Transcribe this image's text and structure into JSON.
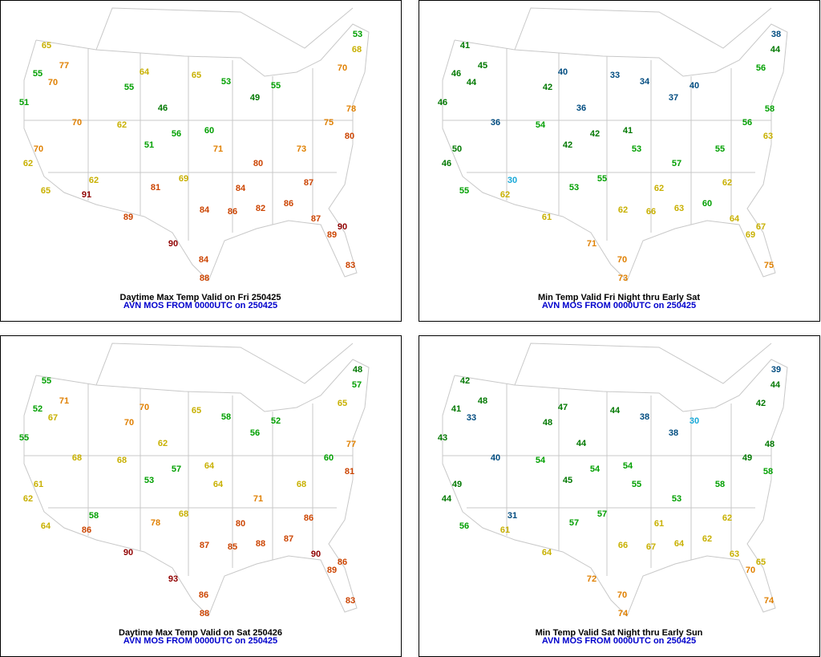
{
  "panels": [
    {
      "title": "Daytime Max Temp Valid on Fri 250425",
      "subtitle": "AVN MOS FROM 0000UTC on 250425",
      "values": [
        65,
        55,
        77,
        70,
        51,
        70,
        70,
        62,
        65,
        91,
        62,
        89,
        64,
        65,
        55,
        46,
        62,
        51,
        56,
        60,
        53,
        49,
        55,
        71,
        80,
        69,
        81,
        84,
        86,
        82,
        90,
        88,
        84,
        86,
        87,
        90,
        83,
        89,
        73,
        75,
        78,
        53,
        68,
        70,
        80,
        87,
        84
      ]
    },
    {
      "title": "Min Temp Valid Fri Night thru Early Sat",
      "subtitle": "AVN MOS FROM 0000UTC on 250425",
      "values": [
        41,
        46,
        45,
        44,
        46,
        36,
        50,
        46,
        55,
        62,
        30,
        61,
        40,
        33,
        42,
        36,
        54,
        42,
        42,
        41,
        34,
        37,
        40,
        53,
        57,
        55,
        53,
        62,
        66,
        63,
        71,
        73,
        70,
        60,
        64,
        67,
        75,
        69,
        55,
        56,
        58,
        38,
        44,
        56,
        63,
        62,
        62
      ]
    },
    {
      "title": "Daytime Max Temp Valid on Sat 250426",
      "subtitle": "AVN MOS FROM 0000UTC on 250425",
      "values": [
        55,
        52,
        71,
        67,
        55,
        68,
        61,
        62,
        64,
        86,
        58,
        90,
        70,
        65,
        70,
        62,
        68,
        53,
        57,
        64,
        58,
        56,
        52,
        64,
        71,
        68,
        78,
        87,
        85,
        88,
        93,
        88,
        86,
        87,
        90,
        86,
        83,
        89,
        68,
        60,
        77,
        48,
        57,
        65,
        81,
        86,
        80
      ]
    },
    {
      "title": "Min Temp Valid Sat Night thru Early Sun",
      "subtitle": "AVN MOS FROM 0000UTC on 250425",
      "values": [
        42,
        41,
        48,
        33,
        43,
        40,
        49,
        44,
        56,
        61,
        31,
        64,
        47,
        44,
        48,
        44,
        54,
        45,
        54,
        54,
        38,
        38,
        30,
        55,
        53,
        57,
        57,
        66,
        67,
        64,
        72,
        74,
        70,
        62,
        63,
        65,
        74,
        70,
        58,
        49,
        48,
        39,
        44,
        42,
        58,
        62,
        61
      ]
    }
  ]
}
